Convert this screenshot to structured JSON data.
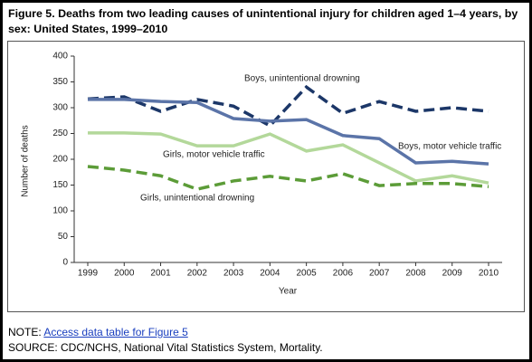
{
  "chart_data": {
    "type": "line",
    "title": "Figure 5. Deaths from two leading causes of unintentional injury for children aged 1–4 years, by sex: United States, 1999–2010",
    "x_label": "Year",
    "y_label": "Number of deaths",
    "x": [
      1999,
      2000,
      2001,
      2002,
      2003,
      2004,
      2005,
      2006,
      2007,
      2008,
      2009,
      2010
    ],
    "xlim": [
      1999,
      2010
    ],
    "xticks": [
      1999,
      2000,
      2001,
      2002,
      2003,
      2004,
      2005,
      2006,
      2007,
      2008,
      2009,
      2010
    ],
    "ylim": [
      0,
      400
    ],
    "yticks": [
      0,
      50,
      100,
      150,
      200,
      250,
      300,
      350,
      400
    ],
    "series": [
      {
        "name": "Boys, unintentional drowning",
        "color": "#1c3768",
        "dashed": true,
        "values": [
          317,
          321,
          293,
          316,
          303,
          265,
          340,
          289,
          312,
          293,
          300,
          293
        ]
      },
      {
        "name": "Boys, motor vehicle traffic",
        "color": "#5b74a8",
        "dashed": false,
        "values": [
          316,
          316,
          312,
          310,
          279,
          274,
          277,
          246,
          240,
          193,
          196,
          191
        ]
      },
      {
        "name": "Girls, motor vehicle traffic",
        "color": "#b3d89a",
        "dashed": false,
        "values": [
          251,
          251,
          249,
          226,
          226,
          249,
          216,
          228,
          193,
          158,
          168,
          154
        ]
      },
      {
        "name": "Girls, unintentional drowning",
        "color": "#5c9c38",
        "dashed": true,
        "values": [
          186,
          179,
          168,
          142,
          158,
          167,
          158,
          172,
          149,
          153,
          153,
          147
        ]
      }
    ]
  },
  "note": {
    "prefix": "NOTE:",
    "link": "Access data table for Figure 5"
  },
  "source": "SOURCE: CDC/NCHS, National Vital Statistics System, Mortality."
}
